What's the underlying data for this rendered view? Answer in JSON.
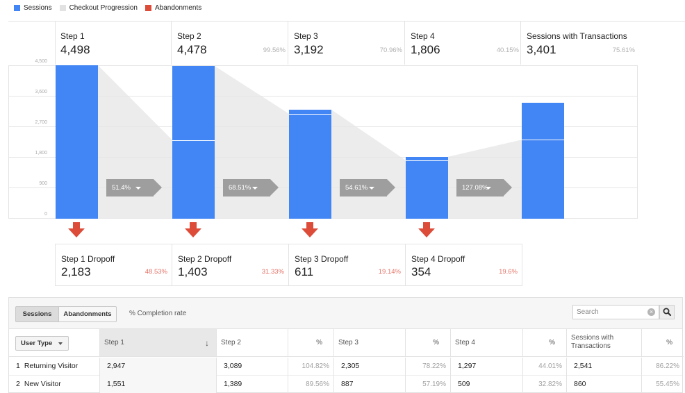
{
  "legend": [
    {
      "label": "Sessions",
      "color": "#4285f4"
    },
    {
      "label": "Checkout Progression",
      "color": "#e2e2e2"
    },
    {
      "label": "Abandonments",
      "color": "#dd4b39"
    }
  ],
  "chart_data": {
    "type": "bar",
    "y_ticks": [
      "4,500",
      "3,600",
      "2,700",
      "1,800",
      "900",
      "0"
    ],
    "ylim": [
      0,
      4500
    ],
    "steps": [
      {
        "name": "Step 1",
        "value": 4498,
        "value_label": "4,498",
        "pct": ""
      },
      {
        "name": "Step 2",
        "value": 4478,
        "value_label": "4,478",
        "pct": "99.56%"
      },
      {
        "name": "Step 3",
        "value": 3192,
        "value_label": "3,192",
        "pct": "70.96%"
      },
      {
        "name": "Step 4",
        "value": 1806,
        "value_label": "1,806",
        "pct": "40.15%"
      },
      {
        "name": "Sessions with Transactions",
        "value": 3401,
        "value_label": "3,401",
        "pct": "75.61%"
      }
    ],
    "continuing": [
      4498,
      2295,
      3071,
      1701,
      2307
    ],
    "conversions": [
      "51.4%",
      "68.51%",
      "54.61%",
      "127.08%"
    ],
    "dropoffs": [
      {
        "name": "Step 1 Dropoff",
        "value_label": "2,183",
        "pct": "48.53%"
      },
      {
        "name": "Step 2 Dropoff",
        "value_label": "1,403",
        "pct": "31.33%"
      },
      {
        "name": "Step 3 Dropoff",
        "value_label": "611",
        "pct": "19.14%"
      },
      {
        "name": "Step 4 Dropoff",
        "value_label": "354",
        "pct": "19.6%"
      }
    ]
  },
  "toolbar": {
    "sessions_label": "Sessions",
    "abandonments_label": "Abandonments",
    "completion_label": "% Completion rate",
    "search_placeholder": "Search",
    "search_clear": "×"
  },
  "table": {
    "usertype_label": "User Type",
    "headers": {
      "step1": "Step 1",
      "step2": "Step 2",
      "pct2": "%",
      "step3": "Step 3",
      "pct3": "%",
      "step4": "Step 4",
      "pct4": "%",
      "trans": "Sessions with Transactions",
      "pct5": "%"
    },
    "sort_indicator": "↓",
    "rows": [
      {
        "num": "1",
        "type": "Returning Visitor",
        "step1": "2,947",
        "step2": "3,089",
        "pct2": "104.82%",
        "step3": "2,305",
        "pct3": "78.22%",
        "step4": "1,297",
        "pct4": "44.01%",
        "trans": "2,541",
        "pct5": "86.22%"
      },
      {
        "num": "2",
        "type": "New Visitor",
        "step1": "1,551",
        "step2": "1,389",
        "pct2": "89.56%",
        "step3": "887",
        "pct3": "57.19%",
        "step4": "509",
        "pct4": "32.82%",
        "trans": "860",
        "pct5": "55.45%"
      }
    ]
  }
}
